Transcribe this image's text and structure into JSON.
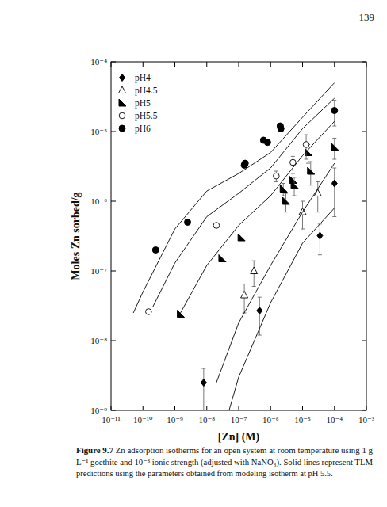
{
  "page_number": "139",
  "caption_label": "Figure 9.7",
  "caption_lines": [
    "Zn adsorption isotherms for an open system at room temperature using 1 g",
    "L⁻¹ goethite and 10⁻³ ionic strength (adjusted with NaNO₃). Solid lines represent TLM",
    "predictions using the parameters obtained from modeling isotherm at pH 5.5."
  ],
  "chart_data": {
    "type": "scatter",
    "x_label": "[Zn] (M)",
    "y_label": "Moles Zn sorbed/g",
    "log": true,
    "grid": false,
    "legend": "upper left",
    "xlim": [
      1e-11,
      0.001
    ],
    "ylim": [
      1e-09,
      0.0001
    ],
    "xticks": [
      {
        "value": 1e-11,
        "label": "10⁻¹¹"
      },
      {
        "value": 1e-10,
        "label": "10⁻¹⁰"
      },
      {
        "value": 1e-09,
        "label": "10⁻⁹"
      },
      {
        "value": 1e-08,
        "label": "10⁻⁸"
      },
      {
        "value": 1e-07,
        "label": "10⁻⁷"
      },
      {
        "value": 1e-06,
        "label": "10⁻⁶"
      },
      {
        "value": 1e-05,
        "label": "10⁻⁵"
      },
      {
        "value": 0.0001,
        "label": "10⁻⁴"
      },
      {
        "value": 0.001,
        "label": "10⁻³"
      }
    ],
    "yticks": [
      {
        "value": 1e-09,
        "label": "10⁻⁹"
      },
      {
        "value": 1e-08,
        "label": "10⁻⁸"
      },
      {
        "value": 1e-07,
        "label": "10⁻⁷"
      },
      {
        "value": 1e-06,
        "label": "10⁻⁶"
      },
      {
        "value": 1e-05,
        "label": "10⁻⁵"
      },
      {
        "value": 0.0001,
        "label": "10⁻⁴"
      }
    ],
    "series": [
      {
        "name": "pH4",
        "type": "scatter",
        "marker": "diamond",
        "color": "#000000",
        "x": [
          8e-09,
          4.5e-07,
          3.5e-05,
          0.0001
        ],
        "values": [
          2.5e-09,
          2.7e-08,
          3.2e-07,
          1.8e-06
        ],
        "errors": [
          1.5e-09,
          1.5e-08,
          1.5e-07,
          1.2e-06
        ]
      },
      {
        "name": "pH4.5",
        "type": "scatter",
        "marker": "triangle-open",
        "color": "#000000",
        "x": [
          1.5e-07,
          3e-07,
          1e-05,
          3e-05
        ],
        "values": [
          4.5e-08,
          1e-07,
          7e-07,
          1.3e-06
        ],
        "errors": [
          2e-08,
          4e-08,
          3e-07,
          6e-07
        ]
      },
      {
        "name": "pH5",
        "type": "scatter",
        "marker": "half-triangle",
        "color": "#000000",
        "x": [
          1.5e-09,
          3e-08,
          1.2e-07,
          2.5e-06,
          3e-06,
          5e-06,
          5.5e-06,
          1.5e-05,
          1.8e-05,
          0.0001
        ],
        "values": [
          2.4e-08,
          1.5e-07,
          3e-07,
          1.5e-06,
          1e-06,
          2e-06,
          1.7e-06,
          5e-06,
          2.7e-06,
          6e-06
        ],
        "errors": [
          0,
          0,
          0,
          3e-07,
          3e-07,
          5e-07,
          5e-07,
          1.5e-06,
          1e-06,
          2e-06
        ]
      },
      {
        "name": "pH5.5",
        "type": "scatter",
        "marker": "circle-open",
        "color": "#000000",
        "x": [
          1.5e-10,
          2e-08,
          1.5e-06,
          5e-06,
          1.3e-05
        ],
        "values": [
          2.6e-08,
          4.5e-07,
          2.3e-06,
          3.6e-06,
          6.5e-06
        ],
        "errors": [
          0,
          0,
          4e-07,
          8e-07,
          2.5e-06
        ]
      },
      {
        "name": "pH6",
        "type": "scatter",
        "marker": "circle",
        "color": "#000000",
        "x": [
          2.5e-10,
          2.5e-09,
          1.5e-07,
          1.6e-07,
          6e-07,
          8e-07,
          2e-06,
          2.1e-06,
          0.0001
        ],
        "values": [
          2e-07,
          5e-07,
          3.3e-06,
          3.5e-06,
          7.5e-06,
          7e-06,
          1.2e-05,
          1.1e-05,
          2e-05
        ],
        "errors": [
          0,
          0,
          3e-07,
          3e-07,
          5e-07,
          5e-07,
          1e-06,
          1e-06,
          8e-06
        ]
      },
      {
        "type": "line",
        "line_style": "solid",
        "color": "#000000",
        "x": [
          5e-11,
          1e-10,
          1e-09,
          1e-08,
          1e-07,
          1e-06,
          1e-05,
          0.0001
        ],
        "values": [
          2.5e-08,
          5e-08,
          4e-07,
          1.4e-06,
          2.5e-06,
          5e-06,
          1.6e-05,
          5e-05
        ]
      },
      {
        "type": "line",
        "line_style": "solid",
        "color": "#000000",
        "x": [
          2e-10,
          1e-09,
          1e-08,
          1e-07,
          1e-06,
          1e-05,
          0.0001
        ],
        "values": [
          3e-08,
          1.3e-07,
          6e-07,
          1.3e-06,
          3e-06,
          1.1e-05,
          3e-05
        ]
      },
      {
        "type": "line",
        "line_style": "solid",
        "color": "#000000",
        "x": [
          1.5e-09,
          1e-08,
          1e-07,
          1e-06,
          1e-05,
          0.0001
        ],
        "values": [
          2.5e-08,
          1.2e-07,
          4.5e-07,
          1.2e-06,
          4.5e-06,
          1.4e-05
        ]
      },
      {
        "type": "line",
        "line_style": "solid",
        "color": "#000000",
        "x": [
          2e-08,
          1e-07,
          1e-06,
          1e-05,
          0.0001
        ],
        "values": [
          2.5e-09,
          1.8e-08,
          1.2e-07,
          7e-07,
          3.5e-06
        ]
      },
      {
        "type": "line",
        "line_style": "solid",
        "color": "#000000",
        "x": [
          5e-08,
          1e-07,
          1e-06,
          1e-05,
          0.0001
        ],
        "values": [
          1e-09,
          3e-09,
          3.5e-08,
          2.5e-07,
          8e-07
        ]
      }
    ]
  }
}
